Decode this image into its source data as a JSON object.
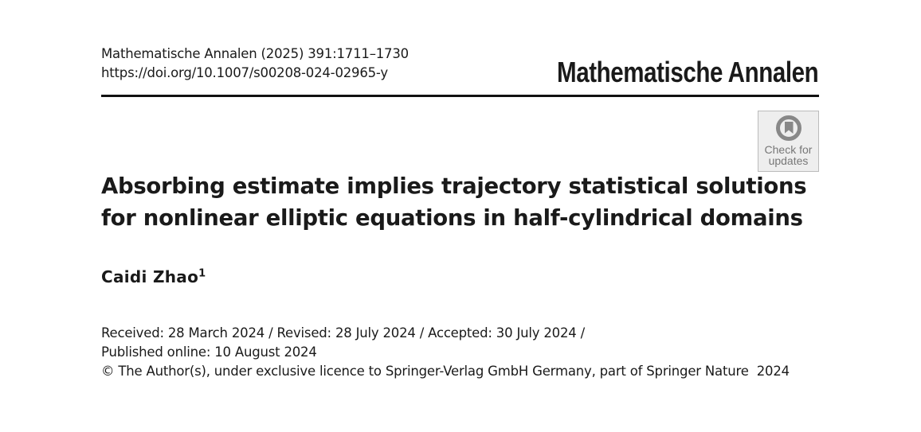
{
  "header": {
    "citation": "Mathematische Annalen (2025) 391:1711–1730",
    "doi": "https://doi.org/10.1007/s00208-024-02965-y",
    "journal_title": "Mathematische Annalen",
    "check_for_updates": {
      "line1": "Check for",
      "line2": "updates"
    }
  },
  "article": {
    "title_line1": "Absorbing estimate implies trajectory statistical solutions",
    "title_line2": "for nonlinear elliptic equations in half-cylindrical domains",
    "author": "Caidi Zhao",
    "author_affiliation_mark": "1",
    "history_line1": "Received: 28 March 2024 / Revised: 28 July 2024 / Accepted: 30 July 2024 /",
    "history_line2": "Published online: 10 August 2024",
    "copyright": "© The Author(s), under exclusive licence to Springer-Verlag GmbH Germany, part of Springer Nature  2024"
  }
}
